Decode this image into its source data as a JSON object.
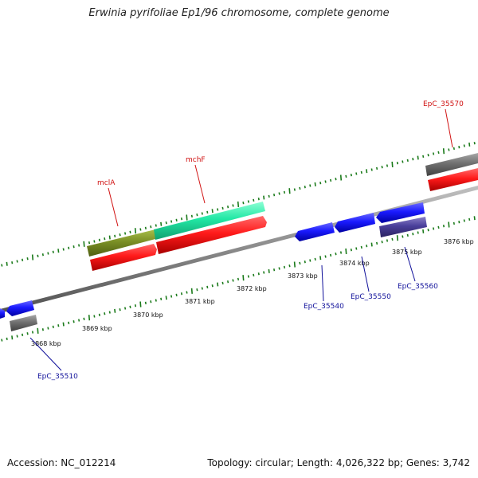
{
  "title": "Erwinia pyrifoliae Ep1/96 chromosome, complete genome",
  "footer": {
    "accession": "Accession: NC_012214",
    "summary": "Topology: circular; Length: 4,026,322 bp; Genes: 3,742"
  },
  "tick_labels": [
    "3868 kbp",
    "3869 kbp",
    "3870 kbp",
    "3871 kbp",
    "3872 kbp",
    "3873 kbp",
    "3874 kbp",
    "3875 kbp",
    "3876 kbp"
  ],
  "gene_labels": [
    "mclA",
    "mchF",
    "EpC_35570",
    "EpC_35540",
    "EpC_35550",
    "EpC_35560",
    "EpC_35510"
  ],
  "colors": {
    "backbone": "#8a8a8a",
    "tick": "#1a7a1a",
    "cds_forward": "#ff1a1a",
    "cds_reverse": "#1a1aff",
    "gene_grey": "#6e6e6e",
    "cog_olive": "#7a8f25",
    "cog_teal": "#22e8a5",
    "cog_purple": "#4a3f9a",
    "label_red": "#d01010",
    "label_blue": "#10109a"
  }
}
